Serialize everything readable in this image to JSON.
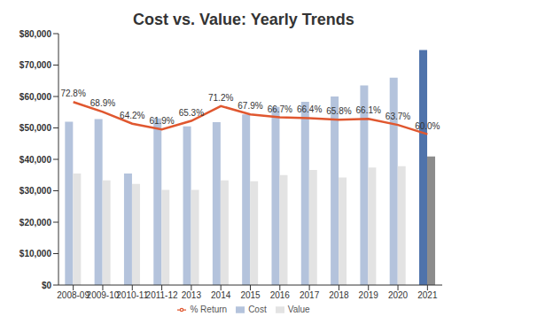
{
  "chart_data": {
    "type": "bar",
    "title": "Cost vs. Value: Yearly Trends",
    "categories": [
      "2008-09",
      "2009-10",
      "2010-11",
      "2011-12",
      "2013",
      "2014",
      "2015",
      "2016",
      "2017",
      "2018",
      "2019",
      "2020",
      "2021"
    ],
    "series": [
      {
        "name": "Cost",
        "type": "bar",
        "values": [
          52000,
          52800,
          35500,
          53000,
          50500,
          51800,
          54300,
          56700,
          58300,
          60000,
          63500,
          66000,
          74800
        ],
        "colors": [
          "#b4c3dc",
          "#b4c3dc",
          "#b4c3dc",
          "#b4c3dc",
          "#b4c3dc",
          "#b4c3dc",
          "#b4c3dc",
          "#b4c3dc",
          "#b4c3dc",
          "#b4c3dc",
          "#b4c3dc",
          "#b4c3dc",
          "#4f73ab"
        ]
      },
      {
        "name": "Value",
        "type": "bar",
        "values": [
          35500,
          33300,
          32200,
          30300,
          30300,
          33300,
          33000,
          35000,
          36600,
          34200,
          37400,
          37800,
          40900
        ],
        "colors": [
          "#e3e3e3",
          "#e3e3e3",
          "#e3e3e3",
          "#e3e3e3",
          "#e3e3e3",
          "#e3e3e3",
          "#e3e3e3",
          "#e3e3e3",
          "#e3e3e3",
          "#e3e3e3",
          "#e3e3e3",
          "#e3e3e3",
          "#8c8c8c"
        ]
      },
      {
        "name": "% Return",
        "type": "line",
        "axis": "y2",
        "color": "#e0572f",
        "marker": "none",
        "data_labels": true,
        "values": [
          72.8,
          68.9,
          64.2,
          61.9,
          65.3,
          71.2,
          67.9,
          66.7,
          66.4,
          65.8,
          66.1,
          63.7,
          60.0
        ],
        "value_labels": [
          "72.8%",
          "68.9%",
          "64.2%",
          "61.9%",
          "65.3%",
          "71.2%",
          "67.9%",
          "66.7%",
          "66.4%",
          "65.8%",
          "66.1%",
          "63.7%",
          "60.0%"
        ]
      }
    ],
    "ylim": [
      0,
      80000
    ],
    "yticks": [
      {
        "value": 0,
        "label": "$0"
      },
      {
        "value": 10000,
        "label": "$10,000"
      },
      {
        "value": 20000,
        "label": "$20,000"
      },
      {
        "value": 30000,
        "label": "$30,000"
      },
      {
        "value": 40000,
        "label": "$40,000"
      },
      {
        "value": 50000,
        "label": "$50,000"
      },
      {
        "value": 60000,
        "label": "$60,000"
      },
      {
        "value": 70000,
        "label": "$70,000"
      },
      {
        "value": 80000,
        "label": "$80,000"
      }
    ],
    "y2lim": [
      0,
      100
    ],
    "legend": "bottom",
    "grid": false
  }
}
